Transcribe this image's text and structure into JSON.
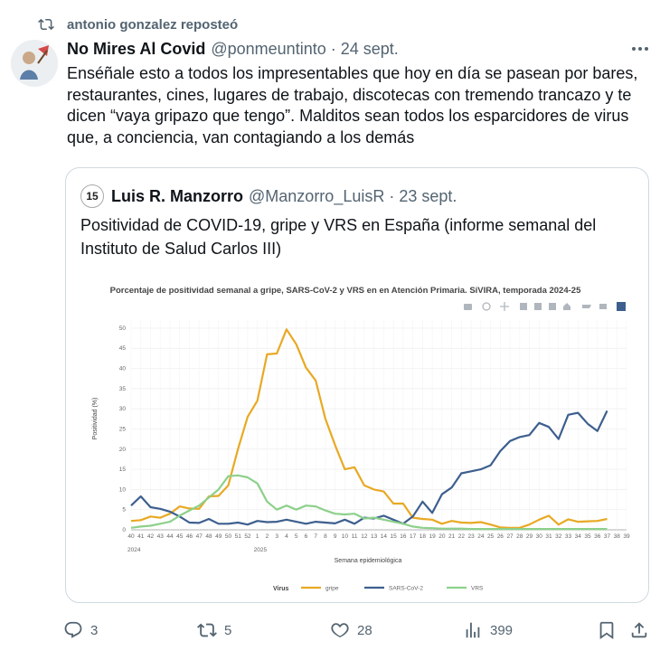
{
  "repost": {
    "label": "antonio gonzalez reposteó",
    "icon": "repost-icon"
  },
  "tweet": {
    "author_name": "No Mires Al Covid",
    "author_handle": "@ponmeuntinto",
    "separator": "·",
    "date": "24 sept.",
    "text": "Enséñale esto a todos los impresentables que hoy en día se pasean por bares, restaurantes, cines, lugares de trabajo, discotecas con tremendo trancazo y te dicen “vaya gripazo que tengo”. Malditos sean todos los esparcidores de virus que, a conciencia, van contagiando a los demás"
  },
  "quote": {
    "author_name": "Luis R. Manzorro",
    "author_handle": "@Manzorro_LuisR",
    "separator": "·",
    "date": "23 sept.",
    "avatar_text": "15",
    "text": "Positividad de COVID-19, gripe y VRS en España (informe semanal del Instituto de Salud Carlos III)"
  },
  "actions": {
    "replies": "3",
    "reposts": "5",
    "likes": "28",
    "views": "399"
  },
  "chart_data": {
    "type": "line",
    "title": "Porcentaje de positividad semanal a gripe, SARS-CoV-2 y VRS en en Atención Primaria. SiVIRA, temporada 2024-25",
    "xlabel": "Semana epidemiológica",
    "ylabel": "Positividad (%)",
    "ylim": [
      0,
      52
    ],
    "yticks": [
      0,
      5,
      10,
      15,
      20,
      25,
      30,
      35,
      40,
      45,
      50
    ],
    "x": [
      "40",
      "41",
      "42",
      "43",
      "44",
      "45",
      "46",
      "47",
      "48",
      "49",
      "50",
      "51",
      "52",
      "1",
      "2",
      "3",
      "4",
      "5",
      "6",
      "7",
      "8",
      "9",
      "10",
      "11",
      "12",
      "13",
      "14",
      "15",
      "16",
      "17",
      "18",
      "19",
      "20",
      "21",
      "22",
      "23",
      "24",
      "25",
      "26",
      "27",
      "28",
      "29",
      "30",
      "31",
      "32",
      "33",
      "34",
      "35",
      "36",
      "37",
      "38",
      "39"
    ],
    "year_labels": [
      {
        "label": "2024",
        "at": "40"
      },
      {
        "label": "2025",
        "at": "1"
      }
    ],
    "legend_title": "Virus",
    "legend_placement": "bottom",
    "grid": true,
    "series": [
      {
        "name": "gripe",
        "color": "#e8a923",
        "values": [
          2.2,
          2.4,
          3.3,
          3.0,
          4.0,
          5.8,
          5.3,
          5.2,
          8.3,
          8.4,
          11.0,
          20.0,
          28.0,
          32.0,
          43.5,
          43.7,
          49.7,
          46.0,
          40.2,
          37.0,
          27.5,
          21.0,
          15.0,
          15.5,
          11.0,
          10.0,
          9.5,
          6.5,
          6.5,
          3.0,
          2.7,
          2.5,
          1.5,
          2.2,
          1.8,
          1.7,
          1.9,
          1.3,
          0.6,
          0.5,
          0.5,
          1.3,
          2.5,
          3.5,
          1.3,
          2.6,
          2.0,
          2.1,
          2.2,
          2.7,
          null,
          null
        ]
      },
      {
        "name": "SARS-CoV-2",
        "color": "#3d5f8e",
        "values": [
          6.0,
          8.3,
          5.6,
          5.2,
          4.5,
          3.3,
          1.8,
          1.7,
          2.7,
          1.5,
          1.5,
          1.8,
          1.3,
          2.2,
          1.9,
          2.0,
          2.5,
          2.0,
          1.5,
          2.0,
          1.8,
          1.6,
          2.5,
          1.5,
          3.0,
          2.8,
          3.5,
          2.5,
          1.5,
          3.3,
          7.0,
          4.2,
          8.8,
          10.5,
          14.0,
          14.5,
          15.0,
          16.0,
          19.5,
          22.0,
          23.0,
          23.5,
          26.5,
          25.5,
          22.5,
          28.5,
          29.0,
          26.3,
          24.5,
          29.5,
          null,
          null
        ]
      },
      {
        "name": "VRS",
        "color": "#8dd08b",
        "values": [
          0.5,
          0.8,
          1.0,
          1.5,
          2.0,
          3.5,
          4.8,
          6.0,
          8.0,
          10.0,
          13.3,
          13.5,
          13.0,
          11.5,
          7.0,
          5.0,
          6.0,
          5.0,
          6.0,
          5.8,
          4.8,
          4.0,
          3.8,
          4.0,
          2.8,
          3.0,
          2.5,
          2.0,
          1.5,
          0.8,
          0.5,
          0.4,
          0.3,
          0.3,
          0.3,
          0.2,
          0.2,
          0.2,
          0.2,
          0.2,
          0.2,
          0.2,
          0.2,
          0.2,
          0.2,
          0.2,
          0.2,
          0.2,
          0.2,
          0.2,
          null,
          null
        ]
      }
    ]
  }
}
